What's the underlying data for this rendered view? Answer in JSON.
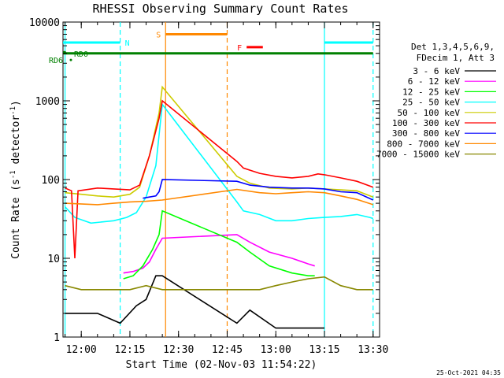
{
  "chart_data": {
    "type": "line",
    "title": "RHESSI Observing Summary Count Rates",
    "xlabel": "Start Time (02-Nov-03 11:54:22)",
    "ylabel_main": "Count Rate (s",
    "ylabel_sup1": "-1",
    "ylabel_mid": " detector",
    "ylabel_sup2": "-1",
    "ylabel_end": ")",
    "yscale": "log",
    "ylim": [
      1,
      10000
    ],
    "xlim": [
      "11:54:22",
      "13:32:00"
    ],
    "xticks": [
      "12:00",
      "12:15",
      "12:30",
      "12:45",
      "13:00",
      "13:15",
      "13:30"
    ],
    "yticks": [
      "1",
      "10",
      "100",
      "1000",
      "10000"
    ],
    "grid": false,
    "legend_position": "right",
    "legend_header": [
      "Det 1,3,4,5,6,9,",
      "FDecim 1, Att 3"
    ],
    "timestamp": "25-Oct-2021 04:35",
    "series": [
      {
        "name": "3 - 6 keV",
        "color": "#000000",
        "points": [
          [
            "11:55",
            2
          ],
          [
            "12:05",
            2
          ],
          [
            "12:12",
            1.5
          ],
          [
            "12:17",
            2.5
          ],
          [
            "12:20",
            3
          ],
          [
            "12:23",
            6
          ],
          [
            "12:25",
            6
          ],
          [
            "12:48",
            1.5
          ],
          [
            "12:52",
            2.2
          ],
          [
            "13:00",
            1.3
          ],
          [
            "13:10",
            1.3
          ],
          [
            "13:15",
            1.3
          ]
        ]
      },
      {
        "name": "6 - 12 keV",
        "color": "#ff00ff",
        "points": [
          [
            "12:13",
            6.5
          ],
          [
            "12:16",
            6.8
          ],
          [
            "12:19",
            7.5
          ],
          [
            "12:21",
            9
          ],
          [
            "12:23",
            13
          ],
          [
            "12:25",
            18
          ],
          [
            "12:48",
            20
          ],
          [
            "12:52",
            16
          ],
          [
            "12:58",
            12
          ],
          [
            "13:05",
            10
          ],
          [
            "13:10",
            8.5
          ],
          [
            "13:12",
            8
          ]
        ]
      },
      {
        "name": "12 - 25 keV",
        "color": "#00ff00",
        "points": [
          [
            "12:13",
            5.5
          ],
          [
            "12:16",
            6
          ],
          [
            "12:19",
            8
          ],
          [
            "12:22",
            13
          ],
          [
            "12:24",
            20
          ],
          [
            "12:25",
            40
          ],
          [
            "12:48",
            16
          ],
          [
            "12:52",
            12
          ],
          [
            "12:58",
            8
          ],
          [
            "13:05",
            6.5
          ],
          [
            "13:10",
            6
          ],
          [
            "13:12",
            6
          ]
        ]
      },
      {
        "name": "25 - 50 keV",
        "color": "#00ffff",
        "points": [
          [
            "11:55",
            45
          ],
          [
            "11:58",
            33
          ],
          [
            "12:03",
            28
          ],
          [
            "12:10",
            30
          ],
          [
            "12:14",
            33
          ],
          [
            "12:17",
            38
          ],
          [
            "12:20",
            60
          ],
          [
            "12:23",
            150
          ],
          [
            "12:25",
            900
          ],
          [
            "12:48",
            52
          ],
          [
            "12:50",
            40
          ],
          [
            "12:55",
            36
          ],
          [
            "13:00",
            30
          ],
          [
            "13:05",
            30
          ],
          [
            "13:10",
            32
          ],
          [
            "13:15",
            33
          ],
          [
            "13:20",
            34
          ],
          [
            "13:25",
            36
          ],
          [
            "13:29",
            33
          ],
          [
            "13:30",
            32
          ]
        ]
      },
      {
        "name": "50 - 100 keV",
        "color": "#cccc00",
        "points": [
          [
            "11:55",
            68
          ],
          [
            "12:00",
            65
          ],
          [
            "12:05",
            62
          ],
          [
            "12:10",
            60
          ],
          [
            "12:15",
            65
          ],
          [
            "12:18",
            80
          ],
          [
            "12:21",
            200
          ],
          [
            "12:24",
            700
          ],
          [
            "12:25",
            1500
          ],
          [
            "12:48",
            110
          ],
          [
            "12:52",
            90
          ],
          [
            "12:58",
            78
          ],
          [
            "13:05",
            76
          ],
          [
            "13:10",
            78
          ],
          [
            "13:15",
            76
          ],
          [
            "13:20",
            74
          ],
          [
            "13:25",
            72
          ],
          [
            "13:30",
            60
          ]
        ]
      },
      {
        "name": "100 - 300 keV",
        "color": "#ff0000",
        "points": [
          [
            "11:55",
            78
          ],
          [
            "11:57",
            72
          ],
          [
            "11:58",
            10
          ],
          [
            "11:59",
            72
          ],
          [
            "12:05",
            78
          ],
          [
            "12:10",
            76
          ],
          [
            "12:15",
            74
          ],
          [
            "12:18",
            85
          ],
          [
            "12:21",
            200
          ],
          [
            "12:24",
            600
          ],
          [
            "12:25",
            1000
          ],
          [
            "12:48",
            170
          ],
          [
            "12:50",
            140
          ],
          [
            "12:55",
            120
          ],
          [
            "13:00",
            110
          ],
          [
            "13:05",
            105
          ],
          [
            "13:10",
            110
          ],
          [
            "13:13",
            118
          ],
          [
            "13:15",
            115
          ],
          [
            "13:20",
            105
          ],
          [
            "13:25",
            95
          ],
          [
            "13:30",
            80
          ]
        ]
      },
      {
        "name": "300 - 800 keV",
        "color": "#0000ff",
        "points": [
          [
            "12:19",
            58
          ],
          [
            "12:21",
            60
          ],
          [
            "12:23",
            62
          ],
          [
            "12:24",
            70
          ],
          [
            "12:25",
            100
          ],
          [
            "12:48",
            95
          ],
          [
            "12:52",
            85
          ],
          [
            "12:58",
            80
          ],
          [
            "13:05",
            78
          ],
          [
            "13:10",
            78
          ],
          [
            "13:15",
            76
          ],
          [
            "13:20",
            70
          ],
          [
            "13:25",
            68
          ],
          [
            "13:30",
            55
          ]
        ]
      },
      {
        "name": "800 - 7000 keV",
        "color": "#ff8800",
        "points": [
          [
            "11:55",
            50
          ],
          [
            "12:05",
            48
          ],
          [
            "12:10",
            50
          ],
          [
            "12:15",
            52
          ],
          [
            "12:20",
            53
          ],
          [
            "12:25",
            55
          ],
          [
            "12:48",
            75
          ],
          [
            "12:55",
            68
          ],
          [
            "13:00",
            66
          ],
          [
            "13:05",
            68
          ],
          [
            "13:10",
            70
          ],
          [
            "13:15",
            68
          ],
          [
            "13:20",
            62
          ],
          [
            "13:25",
            56
          ],
          [
            "13:30",
            48
          ]
        ]
      },
      {
        "name": "7000 - 15000 keV",
        "color": "#888800",
        "points": [
          [
            "11:55",
            4.5
          ],
          [
            "12:00",
            4
          ],
          [
            "12:05",
            4
          ],
          [
            "12:10",
            4
          ],
          [
            "12:15",
            4
          ],
          [
            "12:20",
            4.5
          ],
          [
            "12:25",
            4
          ],
          [
            "12:48",
            4
          ],
          [
            "12:55",
            4
          ],
          [
            "13:00",
            4.5
          ],
          [
            "13:05",
            5
          ],
          [
            "13:10",
            5.5
          ],
          [
            "13:15",
            5.8
          ],
          [
            "13:20",
            4.5
          ],
          [
            "13:25",
            4
          ],
          [
            "13:30",
            4
          ]
        ]
      }
    ],
    "flags": [
      {
        "label": "N",
        "color": "#00ffff",
        "segments": [
          [
            "11:54:22",
            "12:12"
          ],
          [
            "13:15",
            "13:30"
          ]
        ],
        "level": 5500
      },
      {
        "label": "S",
        "color": "#ff8800",
        "segments": [
          [
            "12:26",
            "12:45"
          ]
        ],
        "level": 7000
      },
      {
        "label": "F",
        "color": "#ff0000",
        "segments": [
          [
            "12:51",
            "12:56"
          ]
        ],
        "level": 4800
      },
      {
        "label": "RD0",
        "color": "#008000",
        "segments": [
          [
            "11:54:22",
            "13:30"
          ]
        ],
        "level": 4000
      },
      {
        "label": "RD6",
        "color": "#008000",
        "segments": [],
        "level": 3300
      }
    ],
    "vlines": [
      {
        "time": "12:12",
        "color": "#00ffff",
        "style": "dashed"
      },
      {
        "time": "12:26",
        "color": "#ff8800",
        "style": "solid"
      },
      {
        "time": "12:45",
        "color": "#ff8800",
        "style": "dashed"
      },
      {
        "time": "13:15",
        "color": "#00ffff",
        "style": "solid"
      },
      {
        "time": "13:30",
        "color": "#00ffff",
        "style": "dashed"
      },
      {
        "time": "11:55",
        "color": "#00ffff",
        "style": "solid"
      }
    ]
  }
}
